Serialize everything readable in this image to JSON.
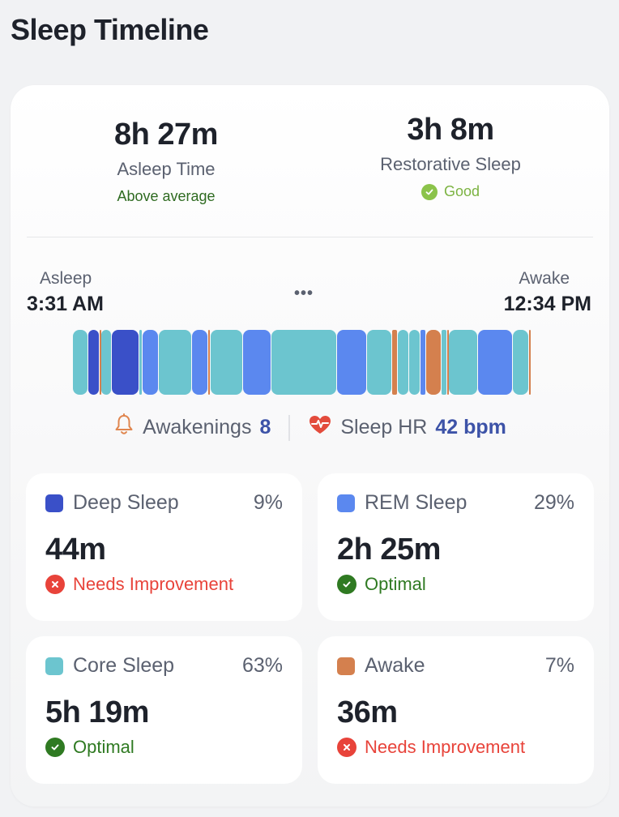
{
  "header": {
    "title": "Sleep Timeline"
  },
  "summary": {
    "asleep": {
      "value": "8h 27m",
      "label": "Asleep Time",
      "note": "Above average"
    },
    "restorative": {
      "value": "3h 8m",
      "label": "Restorative Sleep",
      "note": "Good"
    }
  },
  "timeline": {
    "start_label": "Asleep",
    "start_time": "3:31 AM",
    "end_label": "Awake",
    "end_time": "12:34 PM",
    "more": "•••",
    "segments": [
      {
        "stage": "core",
        "start": 0.0,
        "end": 0.033
      },
      {
        "stage": "deep",
        "start": 0.033,
        "end": 0.058
      },
      {
        "stage": "awake",
        "start": 0.058,
        "end": 0.062
      },
      {
        "stage": "core",
        "start": 0.062,
        "end": 0.085
      },
      {
        "stage": "deep",
        "start": 0.085,
        "end": 0.145
      },
      {
        "stage": "core",
        "start": 0.145,
        "end": 0.153
      },
      {
        "stage": "rem",
        "start": 0.153,
        "end": 0.187
      },
      {
        "stage": "core",
        "start": 0.187,
        "end": 0.26
      },
      {
        "stage": "rem",
        "start": 0.26,
        "end": 0.296
      },
      {
        "stage": "awake",
        "start": 0.296,
        "end": 0.3
      },
      {
        "stage": "core",
        "start": 0.3,
        "end": 0.372
      },
      {
        "stage": "rem",
        "start": 0.372,
        "end": 0.434
      },
      {
        "stage": "core",
        "start": 0.434,
        "end": 0.577
      },
      {
        "stage": "rem",
        "start": 0.577,
        "end": 0.643
      },
      {
        "stage": "core",
        "start": 0.643,
        "end": 0.697
      },
      {
        "stage": "awake",
        "start": 0.697,
        "end": 0.71
      },
      {
        "stage": "core",
        "start": 0.71,
        "end": 0.735
      },
      {
        "stage": "core",
        "start": 0.735,
        "end": 0.76
      },
      {
        "stage": "rem",
        "start": 0.76,
        "end": 0.772
      },
      {
        "stage": "awake",
        "start": 0.772,
        "end": 0.805
      },
      {
        "stage": "core",
        "start": 0.805,
        "end": 0.818
      },
      {
        "stage": "awake",
        "start": 0.818,
        "end": 0.822
      },
      {
        "stage": "core",
        "start": 0.822,
        "end": 0.885
      },
      {
        "stage": "rem",
        "start": 0.885,
        "end": 0.961
      },
      {
        "stage": "core",
        "start": 0.961,
        "end": 0.997
      },
      {
        "stage": "awake",
        "start": 0.997,
        "end": 1.0
      }
    ]
  },
  "metrics": {
    "awakenings_label": "Awakenings",
    "awakenings_value": "8",
    "hr_label": "Sleep HR",
    "hr_value": "42 bpm"
  },
  "stages": [
    {
      "name": "Deep Sleep",
      "percent": "9%",
      "duration": "44m",
      "status": "Needs Improvement",
      "status_type": "bad",
      "color": "#3a50c8"
    },
    {
      "name": "REM Sleep",
      "percent": "29%",
      "duration": "2h 25m",
      "status": "Optimal",
      "status_type": "good",
      "color": "#5b88ef"
    },
    {
      "name": "Core Sleep",
      "percent": "63%",
      "duration": "5h 19m",
      "status": "Optimal",
      "status_type": "good",
      "color": "#6cc5cf"
    },
    {
      "name": "Awake",
      "percent": "7%",
      "duration": "36m",
      "status": "Needs Improvement",
      "status_type": "bad",
      "color": "#d4804e"
    }
  ],
  "colors": {
    "deep": "#3a50c8",
    "rem": "#5b88ef",
    "core": "#6cc5cf",
    "awake": "#d4804e",
    "good": "#2f7a22",
    "bad": "#e8433a",
    "bell": "#e0864f",
    "heart": "#e34b3c"
  }
}
